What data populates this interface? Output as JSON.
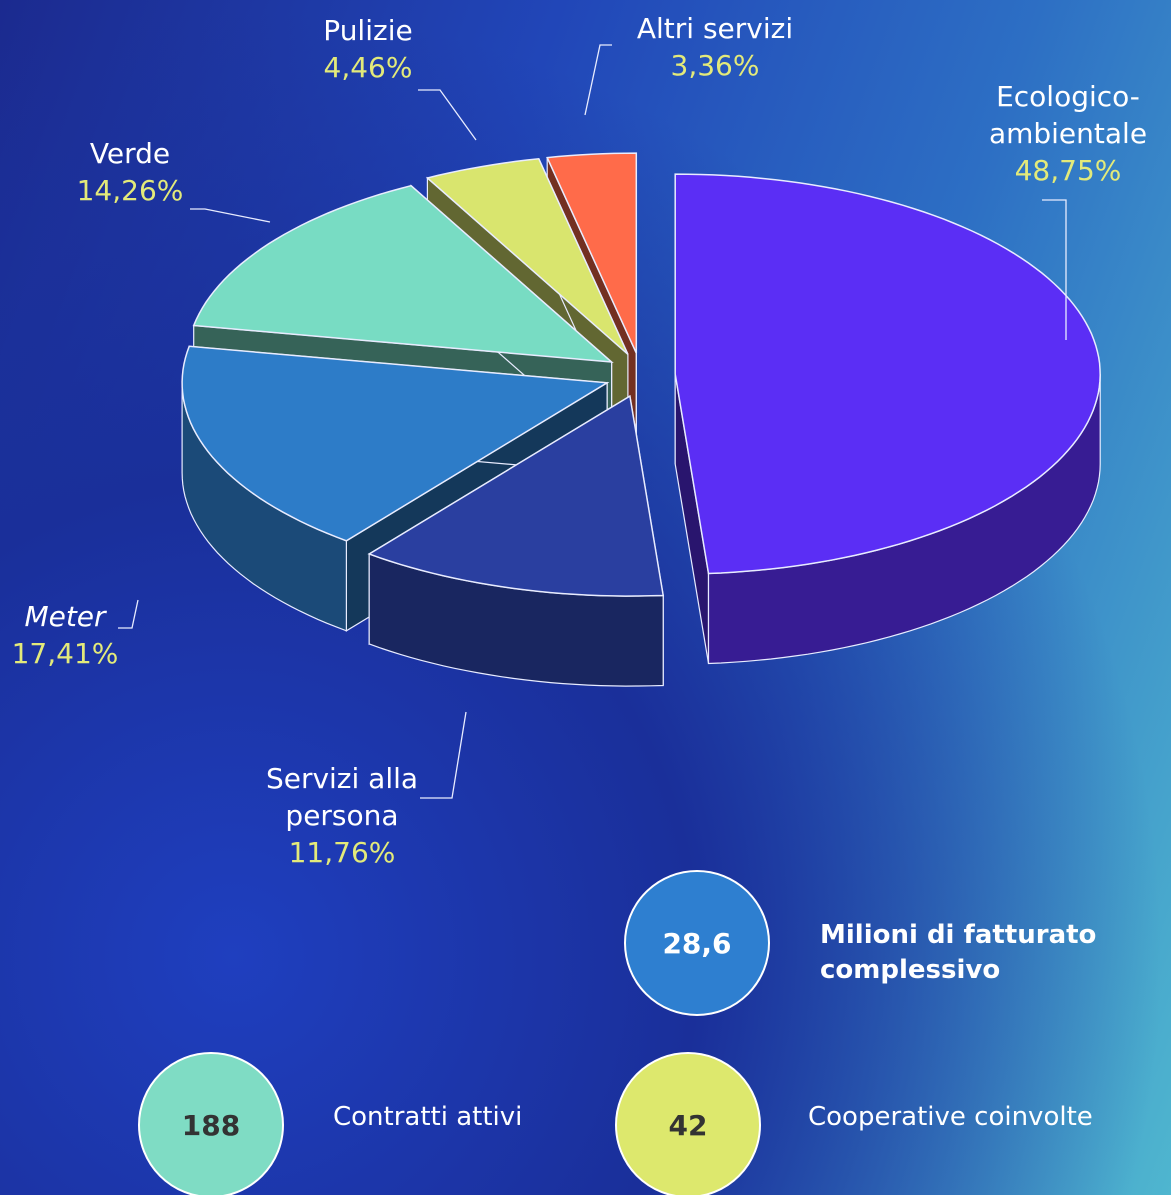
{
  "chart_data": {
    "type": "pie",
    "categories": [
      "Ecologico-ambientale",
      "Servizi alla persona",
      "Meter",
      "Verde",
      "Pulizie",
      "Altri servizi"
    ],
    "values": [
      48.75,
      11.76,
      17.41,
      14.26,
      4.46,
      3.36
    ],
    "value_labels": [
      "48,75%",
      "11,76%",
      "17,41%",
      "14,26%",
      "4,46%",
      "3,36%"
    ],
    "colors": [
      "#5b2ef5",
      "#2a3fa0",
      "#2d7cc8",
      "#78dcc3",
      "#d9e56e",
      "#ff6b4a"
    ]
  },
  "kpis": [
    {
      "value": "28,6",
      "label": "Milioni di fatturato complessivo",
      "color": "#2e7fd0"
    },
    {
      "value": "188",
      "label": "Contratti attivi",
      "color": "#7fdcc4"
    },
    {
      "value": "42",
      "label": "Cooperative coinvolte",
      "color": "#dde86d"
    }
  ]
}
